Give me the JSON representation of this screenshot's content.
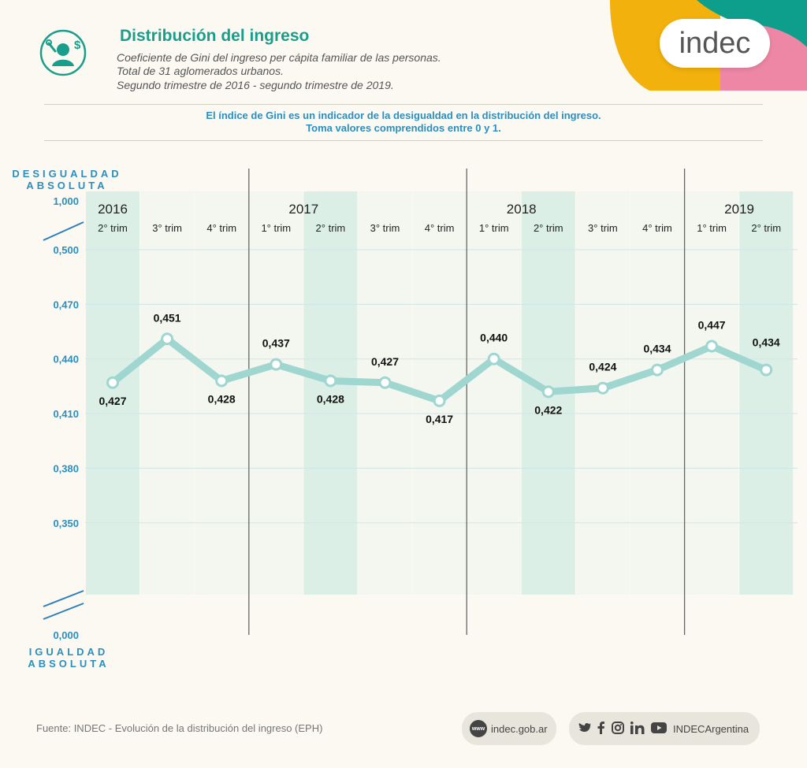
{
  "header": {
    "title": "Distribución del ingreso",
    "subtitle_lines": [
      "Coeficiente de Gini del ingreso per cápita familiar de las personas.",
      "Total de 31 aglomerados urbanos.",
      "Segundo trimestre de 2016 - segundo trimestre de 2019."
    ],
    "logo_text": "indec"
  },
  "intro_lines": [
    "El índice de Gini es un indicador de la desigualdad en la distribución del ingreso.",
    "Toma valores comprendidos entre 0 y 1."
  ],
  "colors": {
    "accent": "#1a9e8c",
    "axis_text": "#2a8fbf",
    "line": "#9fd6d0",
    "band": "#dcefe6",
    "brand_yellow": "#f2b10c",
    "brand_teal": "#0e9f8c",
    "brand_pink": "#ee87a6"
  },
  "chart_data": {
    "type": "line",
    "y_top_label_lines": [
      "DESIGUALDAD",
      "ABSOLUTA"
    ],
    "y_bottom_label_lines": [
      "IGUALDAD",
      "ABSOLUTA"
    ],
    "y_axis_break": true,
    "y_ticks": [
      "1,000",
      "0,500",
      "0,470",
      "0,440",
      "0,410",
      "0,380",
      "0,350",
      "0,000"
    ],
    "ylim": [
      0.33,
      0.5
    ],
    "years": [
      {
        "label": "2016",
        "start_index": 0
      },
      {
        "label": "2017",
        "start_index": 3
      },
      {
        "label": "2018",
        "start_index": 7
      },
      {
        "label": "2019",
        "start_index": 11
      }
    ],
    "categories": [
      "2° trim",
      "3° trim",
      "4° trim",
      "1° trim",
      "2° trim",
      "3° trim",
      "4° trim",
      "1° trim",
      "2° trim",
      "3° trim",
      "4° trim",
      "1° trim",
      "2° trim"
    ],
    "values": [
      0.427,
      0.451,
      0.428,
      0.437,
      0.428,
      0.427,
      0.417,
      0.44,
      0.422,
      0.424,
      0.434,
      0.447,
      0.434
    ],
    "value_labels": [
      "0,427",
      "0,451",
      "0,428",
      "0,437",
      "0,428",
      "0,427",
      "0,417",
      "0,440",
      "0,422",
      "0,424",
      "0,434",
      "0,447",
      "0,434"
    ],
    "highlighted_quarters": [
      0,
      4,
      8,
      12
    ]
  },
  "footer": {
    "source": "Fuente: INDEC - Evolución de la distribución del ingreso (EPH)",
    "www_badge": "www",
    "web": "indec.gob.ar",
    "social_handle": "INDECArgentina",
    "social_icons": [
      "twitter-icon",
      "facebook-icon",
      "instagram-icon",
      "linkedin-icon",
      "youtube-icon"
    ]
  }
}
